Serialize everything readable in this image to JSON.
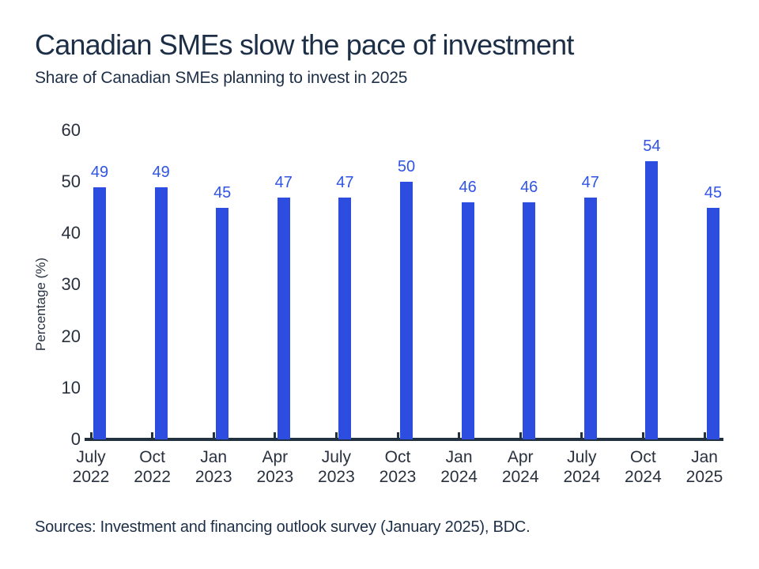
{
  "header": {
    "title": "Canadian SMEs slow the pace of investment",
    "subtitle": "Share of Canadian SMEs planning to invest in 2025"
  },
  "chart_data": {
    "type": "bar",
    "title": "Canadian SMEs slow the pace of investment",
    "subtitle": "Share of Canadian SMEs planning to invest in 2025",
    "xlabel": "",
    "ylabel": "Percentage (%)",
    "ylim": [
      0,
      60
    ],
    "yticks": [
      0,
      10,
      20,
      30,
      40,
      50,
      60
    ],
    "grid": false,
    "legend": "none",
    "categories": [
      "July 2022",
      "Oct 2022",
      "Jan 2023",
      "Apr 2023",
      "July 2023",
      "Oct 2023",
      "Jan 2024",
      "Apr 2024",
      "July 2024",
      "Oct 2024",
      "Jan 2025"
    ],
    "category_lines": [
      [
        "July",
        "2022"
      ],
      [
        "Oct",
        "2022"
      ],
      [
        "Jan",
        "2023"
      ],
      [
        "Apr",
        "2023"
      ],
      [
        "July",
        "2023"
      ],
      [
        "Oct",
        "2023"
      ],
      [
        "Jan",
        "2024"
      ],
      [
        "Apr",
        "2024"
      ],
      [
        "July",
        "2024"
      ],
      [
        "Oct",
        "2024"
      ],
      [
        "Jan",
        "2025"
      ]
    ],
    "values": [
      49,
      49,
      45,
      47,
      47,
      50,
      46,
      46,
      47,
      54,
      45
    ],
    "bar_color": "#2d4ce0",
    "value_label_color": "#3054e6"
  },
  "footer": {
    "sources": "Sources: Investment and financing outlook survey (January 2025), BDC."
  },
  "colors": {
    "title_text": "#1d2f47",
    "axis_text": "#29313f",
    "axis_line": "#223140",
    "background": "#ffffff"
  }
}
